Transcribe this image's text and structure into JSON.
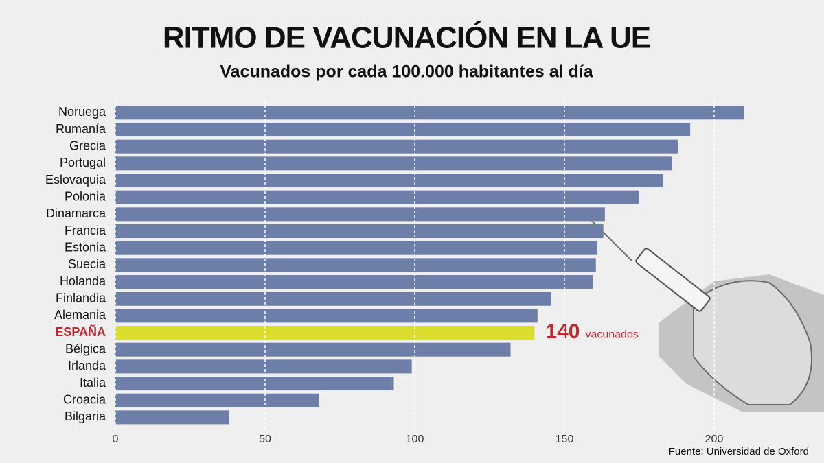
{
  "chart_data": {
    "type": "bar",
    "orientation": "horizontal",
    "title": "RITMO DE VACUNACIÓN EN LA UE",
    "subtitle": "Vacunados por cada 100.000 habitantes al día",
    "categories": [
      "Noruega",
      "Rumanía",
      "Grecia",
      "Portugal",
      "Eslovaquia",
      "Polonia",
      "Dinamarca",
      "Francia",
      "Estonia",
      "Suecia",
      "Holanda",
      "Finlandia",
      "Alemania",
      "ESPAÑA",
      "Bélgica",
      "Irlanda",
      "Italia",
      "Croacia",
      "Bilgaria"
    ],
    "values": [
      210,
      192,
      188,
      186,
      183,
      175,
      163.5,
      163,
      161,
      160.5,
      159.5,
      145.5,
      141,
      140,
      132,
      99,
      93,
      68,
      38
    ],
    "colors": [
      "#6d7ea8",
      "#6d7ea8",
      "#6d7ea8",
      "#6d7ea8",
      "#6d7ea8",
      "#6d7ea8",
      "#6d7ea8",
      "#6d7ea8",
      "#6d7ea8",
      "#6d7ea8",
      "#6d7ea8",
      "#6d7ea8",
      "#6d7ea8",
      "#dadd2c",
      "#6d7ea8",
      "#6d7ea8",
      "#6d7ea8",
      "#6d7ea8",
      "#6d7ea8"
    ],
    "show_label": [
      false,
      false,
      false,
      false,
      false,
      false,
      false,
      false,
      false,
      false,
      false,
      false,
      false,
      true,
      false,
      false,
      false,
      false,
      false
    ],
    "label_color": "#c1272d",
    "label_unit": "vacunados",
    "xlim": [
      0,
      200
    ],
    "xticks": [
      0,
      50,
      100,
      150,
      200
    ],
    "grid": true,
    "source": "Fuente: Universidad de Oxford"
  }
}
